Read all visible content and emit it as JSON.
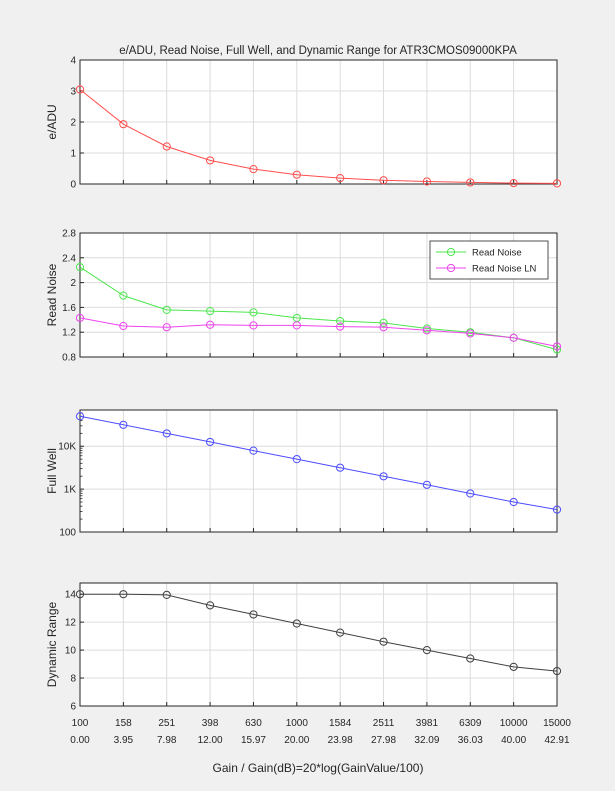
{
  "figure": {
    "title": "e/ADU, Read Noise, Full Well, and Dynamic Range for ATR3CMOS09000KPA",
    "xlabel": "Gain / Gain(dB)=20*log(GainValue/100)",
    "background": "#f0f0f0",
    "gain_labels": [
      "100",
      "158",
      "251",
      "398",
      "630",
      "1000",
      "1584",
      "2511",
      "3981",
      "6309",
      "10000",
      "15000"
    ],
    "db_labels": [
      "0.00",
      "3.95",
      "7.98",
      "12.00",
      "15.97",
      "20.00",
      "23.98",
      "27.98",
      "32.09",
      "36.03",
      "40.00",
      "42.91"
    ]
  },
  "chart_data": [
    {
      "type": "line",
      "title": "e/ADU, Read Noise, Full Well, and Dynamic Range for ATR3CMOS09000KPA",
      "ylabel": "e/ADU",
      "ylim": [
        0,
        4
      ],
      "yticks": [
        0,
        1,
        2,
        3,
        4
      ],
      "ytick_labels": [
        "0",
        "1",
        "2",
        "3",
        "4"
      ],
      "grid": true,
      "series": [
        {
          "color": "#ff4d4d",
          "values": [
            3.05,
            1.93,
            1.21,
            0.76,
            0.48,
            0.3,
            0.19,
            0.12,
            0.08,
            0.05,
            0.03,
            0.02
          ]
        }
      ]
    },
    {
      "type": "line",
      "ylabel": "Read Noise",
      "ylim": [
        0.8,
        2.8
      ],
      "yticks": [
        0.8,
        1.2,
        1.6,
        2.0,
        2.4,
        2.8
      ],
      "ytick_labels": [
        "0.8",
        "1.2",
        "1.6",
        "2",
        "2.4",
        "2.8"
      ],
      "grid": true,
      "legend": "top-right",
      "series": [
        {
          "name": "Read Noise",
          "color": "#4de64d",
          "values": [
            2.25,
            1.79,
            1.56,
            1.54,
            1.52,
            1.43,
            1.38,
            1.35,
            1.26,
            1.2,
            1.11,
            0.92
          ]
        },
        {
          "name": "Read Noise LN",
          "color": "#ee44ee",
          "values": [
            1.43,
            1.3,
            1.28,
            1.32,
            1.31,
            1.31,
            1.29,
            1.28,
            1.23,
            1.18,
            1.11,
            0.97
          ]
        }
      ]
    },
    {
      "type": "line",
      "ylabel": "Full Well",
      "scale": "log",
      "ylim": [
        100,
        70000
      ],
      "yticks": [
        100,
        1000,
        10000
      ],
      "ytick_labels": [
        "100",
        "1K",
        "10K"
      ],
      "grid": true,
      "series": [
        {
          "color": "#4d4dff",
          "values": [
            50000,
            31600,
            19900,
            12600,
            7900,
            5000,
            3160,
            1990,
            1260,
            790,
            500,
            333
          ]
        }
      ]
    },
    {
      "type": "line",
      "ylabel": "Dynamic Range",
      "ylim": [
        6,
        14.8
      ],
      "yticks": [
        6,
        8,
        10,
        12,
        14
      ],
      "ytick_labels": [
        "6",
        "8",
        "10",
        "12",
        "14"
      ],
      "grid": true,
      "series": [
        {
          "color": "#404040",
          "values": [
            14.0,
            14.0,
            13.95,
            13.2,
            12.55,
            11.9,
            11.25,
            10.6,
            10.0,
            9.4,
            8.8,
            8.5
          ]
        }
      ]
    }
  ]
}
